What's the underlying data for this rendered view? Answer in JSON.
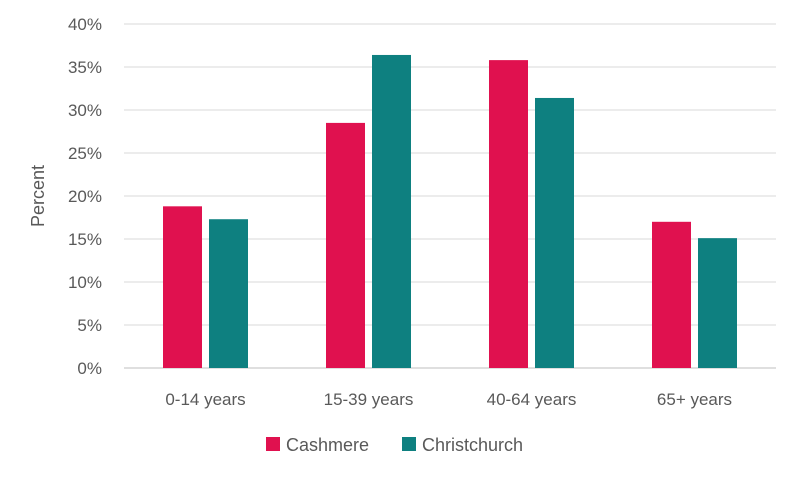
{
  "chart_data": {
    "type": "bar",
    "title": "",
    "xlabel": "",
    "ylabel": "Percent",
    "categories": [
      "0-14 years",
      "15-39 years",
      "40-64 years",
      "65+ years"
    ],
    "series": [
      {
        "name": "Cashmere",
        "color": "#e0114f",
        "values": [
          18.8,
          28.5,
          35.8,
          17.0
        ]
      },
      {
        "name": "Christchurch",
        "color": "#0e8080",
        "values": [
          17.3,
          36.4,
          31.4,
          15.1
        ]
      }
    ],
    "ylim": [
      0,
      40
    ],
    "yticks": [
      0,
      5,
      10,
      15,
      20,
      25,
      30,
      35,
      40
    ],
    "ytick_labels": [
      "0%",
      "5%",
      "10%",
      "15%",
      "20%",
      "25%",
      "30%",
      "35%",
      "40%"
    ],
    "grid": true,
    "legend_position": "bottom"
  }
}
